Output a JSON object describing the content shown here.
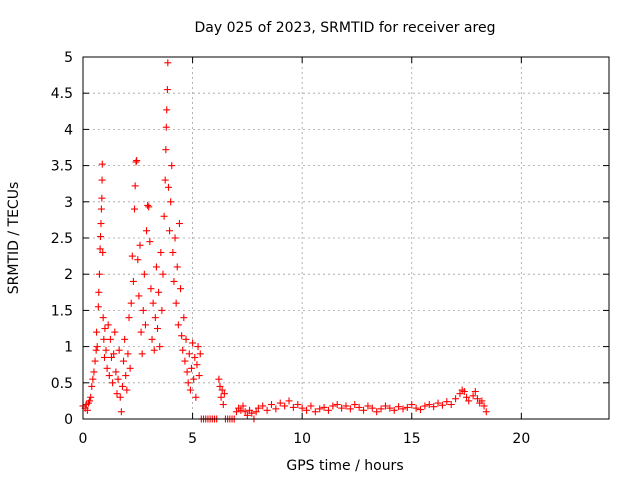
{
  "chart_data": {
    "type": "scatter",
    "title": "Day 025 of 2023, SRMTID for receiver areg",
    "xlabel": "GPS time / hours",
    "ylabel": "SRMTID / TECUs",
    "xlim": [
      0,
      24
    ],
    "ylim": [
      0,
      5
    ],
    "xticks": [
      0,
      5,
      10,
      15,
      20
    ],
    "yticks": [
      0,
      0.5,
      1,
      1.5,
      2,
      2.5,
      3,
      3.5,
      4,
      4.5,
      5
    ],
    "grid": true,
    "marker": "+",
    "color": "#ff0000",
    "series": [
      {
        "name": "SRMTID",
        "points": [
          [
            0.0,
            0.18
          ],
          [
            0.1,
            0.15
          ],
          [
            0.15,
            0.2
          ],
          [
            0.2,
            0.12
          ],
          [
            0.25,
            0.22
          ],
          [
            0.3,
            0.25
          ],
          [
            0.35,
            0.3
          ],
          [
            0.4,
            0.45
          ],
          [
            0.45,
            0.55
          ],
          [
            0.5,
            0.65
          ],
          [
            0.55,
            0.8
          ],
          [
            0.6,
            0.95
          ],
          [
            0.62,
            1.2
          ],
          [
            0.65,
            1.0
          ],
          [
            0.7,
            1.55
          ],
          [
            0.72,
            1.75
          ],
          [
            0.75,
            2.0
          ],
          [
            0.78,
            2.35
          ],
          [
            0.8,
            2.52
          ],
          [
            0.82,
            2.7
          ],
          [
            0.84,
            2.9
          ],
          [
            0.86,
            3.05
          ],
          [
            0.87,
            3.3
          ],
          [
            0.88,
            3.52
          ],
          [
            0.9,
            2.3
          ],
          [
            0.92,
            1.4
          ],
          [
            0.95,
            1.1
          ],
          [
            0.98,
            0.85
          ],
          [
            1.0,
            1.25
          ],
          [
            1.05,
            0.95
          ],
          [
            1.1,
            0.7
          ],
          [
            1.15,
            1.3
          ],
          [
            1.2,
            0.6
          ],
          [
            1.25,
            1.1
          ],
          [
            1.3,
            0.85
          ],
          [
            1.35,
            0.5
          ],
          [
            1.4,
            0.9
          ],
          [
            1.45,
            1.2
          ],
          [
            1.5,
            0.65
          ],
          [
            1.55,
            0.35
          ],
          [
            1.6,
            0.55
          ],
          [
            1.65,
            0.95
          ],
          [
            1.7,
            0.3
          ],
          [
            1.75,
            0.1
          ],
          [
            1.8,
            0.45
          ],
          [
            1.85,
            0.8
          ],
          [
            1.9,
            1.1
          ],
          [
            1.95,
            0.6
          ],
          [
            2.0,
            0.4
          ],
          [
            2.05,
            0.9
          ],
          [
            2.1,
            1.4
          ],
          [
            2.15,
            0.7
          ],
          [
            2.2,
            1.6
          ],
          [
            2.25,
            2.25
          ],
          [
            2.3,
            1.9
          ],
          [
            2.35,
            2.9
          ],
          [
            2.38,
            3.22
          ],
          [
            2.42,
            3.55
          ],
          [
            2.45,
            3.57
          ],
          [
            2.5,
            2.2
          ],
          [
            2.55,
            1.7
          ],
          [
            2.6,
            2.4
          ],
          [
            2.65,
            1.2
          ],
          [
            2.7,
            0.9
          ],
          [
            2.75,
            1.5
          ],
          [
            2.8,
            2.0
          ],
          [
            2.85,
            1.3
          ],
          [
            2.9,
            2.6
          ],
          [
            2.95,
            2.95
          ],
          [
            3.0,
            2.93
          ],
          [
            3.05,
            2.45
          ],
          [
            3.1,
            1.8
          ],
          [
            3.15,
            1.1
          ],
          [
            3.2,
            1.6
          ],
          [
            3.25,
            0.95
          ],
          [
            3.3,
            1.4
          ],
          [
            3.35,
            2.1
          ],
          [
            3.4,
            1.25
          ],
          [
            3.45,
            1.75
          ],
          [
            3.5,
            1.0
          ],
          [
            3.55,
            2.3
          ],
          [
            3.6,
            1.5
          ],
          [
            3.65,
            2.0
          ],
          [
            3.7,
            2.8
          ],
          [
            3.75,
            3.3
          ],
          [
            3.78,
            3.72
          ],
          [
            3.8,
            4.03
          ],
          [
            3.82,
            4.27
          ],
          [
            3.85,
            4.55
          ],
          [
            3.87,
            4.92
          ],
          [
            3.9,
            3.2
          ],
          [
            3.95,
            2.6
          ],
          [
            4.0,
            3.0
          ],
          [
            4.05,
            3.5
          ],
          [
            4.1,
            2.3
          ],
          [
            4.15,
            1.9
          ],
          [
            4.2,
            2.5
          ],
          [
            4.25,
            1.6
          ],
          [
            4.3,
            2.1
          ],
          [
            4.35,
            1.3
          ],
          [
            4.4,
            2.7
          ],
          [
            4.45,
            1.8
          ],
          [
            4.5,
            1.15
          ],
          [
            4.55,
            0.95
          ],
          [
            4.6,
            1.4
          ],
          [
            4.65,
            0.8
          ],
          [
            4.7,
            1.1
          ],
          [
            4.75,
            0.65
          ],
          [
            4.8,
            0.5
          ],
          [
            4.85,
            0.9
          ],
          [
            4.9,
            0.4
          ],
          [
            4.95,
            0.7
          ],
          [
            5.0,
            1.05
          ],
          [
            5.05,
            0.55
          ],
          [
            5.1,
            0.85
          ],
          [
            5.15,
            0.3
          ],
          [
            5.2,
            0.75
          ],
          [
            5.25,
            1.0
          ],
          [
            5.3,
            0.6
          ],
          [
            5.35,
            0.9
          ],
          [
            5.4,
            0.0
          ],
          [
            5.5,
            0.0
          ],
          [
            5.6,
            0.0
          ],
          [
            5.7,
            0.0
          ],
          [
            5.8,
            0.0
          ],
          [
            5.9,
            0.0
          ],
          [
            6.0,
            0.0
          ],
          [
            6.1,
            0.0
          ],
          [
            6.2,
            0.55
          ],
          [
            6.25,
            0.45
          ],
          [
            6.3,
            0.3
          ],
          [
            6.35,
            0.4
          ],
          [
            6.4,
            0.2
          ],
          [
            6.45,
            0.35
          ],
          [
            6.5,
            0.0
          ],
          [
            6.6,
            0.0
          ],
          [
            6.7,
            0.0
          ],
          [
            6.8,
            0.0
          ],
          [
            6.9,
            0.0
          ],
          [
            7.0,
            0.1
          ],
          [
            7.1,
            0.15
          ],
          [
            7.2,
            0.12
          ],
          [
            7.3,
            0.18
          ],
          [
            7.4,
            0.1
          ],
          [
            7.5,
            0.05
          ],
          [
            7.6,
            0.12
          ],
          [
            7.7,
            0.08
          ],
          [
            7.8,
            0.0
          ],
          [
            7.9,
            0.1
          ],
          [
            8.0,
            0.15
          ],
          [
            8.2,
            0.18
          ],
          [
            8.4,
            0.12
          ],
          [
            8.6,
            0.2
          ],
          [
            8.8,
            0.14
          ],
          [
            9.0,
            0.22
          ],
          [
            9.2,
            0.18
          ],
          [
            9.4,
            0.25
          ],
          [
            9.6,
            0.16
          ],
          [
            9.8,
            0.2
          ],
          [
            10.0,
            0.15
          ],
          [
            10.2,
            0.12
          ],
          [
            10.4,
            0.18
          ],
          [
            10.6,
            0.1
          ],
          [
            10.8,
            0.14
          ],
          [
            11.0,
            0.16
          ],
          [
            11.2,
            0.12
          ],
          [
            11.4,
            0.18
          ],
          [
            11.6,
            0.2
          ],
          [
            11.8,
            0.15
          ],
          [
            12.0,
            0.18
          ],
          [
            12.2,
            0.14
          ],
          [
            12.4,
            0.2
          ],
          [
            12.6,
            0.16
          ],
          [
            12.8,
            0.12
          ],
          [
            13.0,
            0.18
          ],
          [
            13.2,
            0.15
          ],
          [
            13.4,
            0.1
          ],
          [
            13.6,
            0.14
          ],
          [
            13.8,
            0.18
          ],
          [
            14.0,
            0.15
          ],
          [
            14.2,
            0.12
          ],
          [
            14.4,
            0.17
          ],
          [
            14.6,
            0.14
          ],
          [
            14.8,
            0.16
          ],
          [
            15.0,
            0.2
          ],
          [
            15.2,
            0.15
          ],
          [
            15.4,
            0.13
          ],
          [
            15.6,
            0.18
          ],
          [
            15.8,
            0.2
          ],
          [
            16.0,
            0.17
          ],
          [
            16.2,
            0.22
          ],
          [
            16.4,
            0.19
          ],
          [
            16.6,
            0.24
          ],
          [
            16.8,
            0.2
          ],
          [
            17.0,
            0.28
          ],
          [
            17.2,
            0.35
          ],
          [
            17.3,
            0.4
          ],
          [
            17.4,
            0.38
          ],
          [
            17.5,
            0.3
          ],
          [
            17.6,
            0.25
          ],
          [
            17.8,
            0.32
          ],
          [
            17.9,
            0.38
          ],
          [
            18.0,
            0.28
          ],
          [
            18.1,
            0.22
          ],
          [
            18.2,
            0.25
          ],
          [
            18.3,
            0.18
          ],
          [
            18.4,
            0.1
          ]
        ]
      }
    ]
  }
}
